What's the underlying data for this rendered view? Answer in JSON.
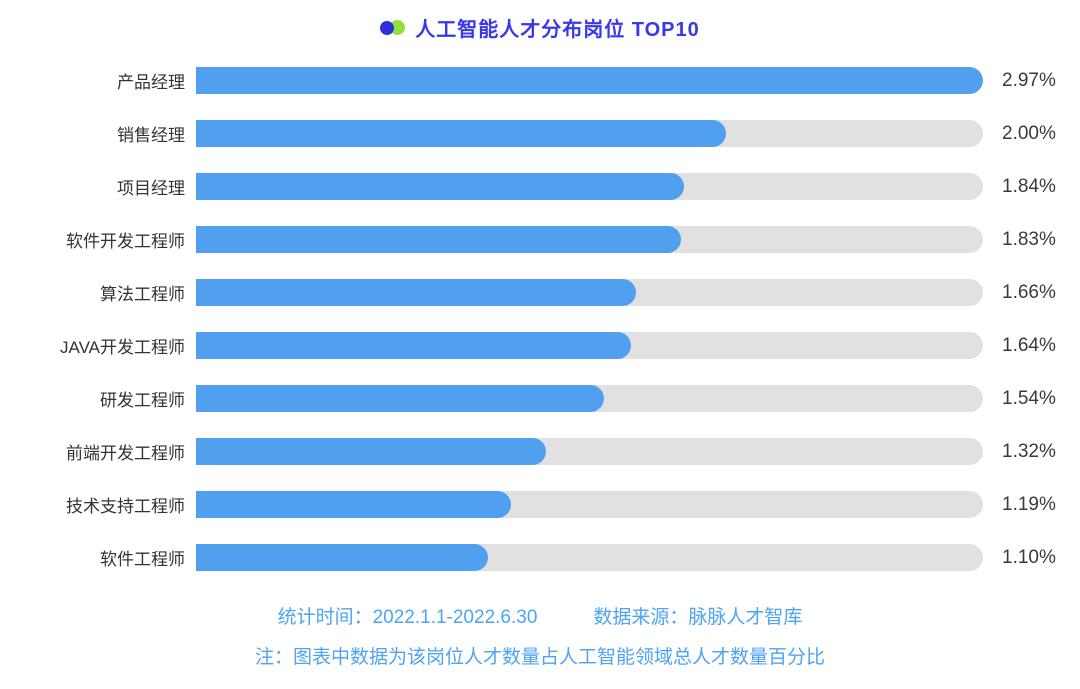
{
  "title": {
    "text": "人工智能人才分布岗位 TOP10",
    "icon": "overlapping-dots-icon"
  },
  "chart_data": {
    "type": "bar",
    "orientation": "horizontal",
    "title": "人工智能人才分布岗位 TOP10",
    "categories": [
      "产品经理",
      "销售经理",
      "项目经理",
      "软件开发工程师",
      "算法工程师",
      "JAVA开发工程师",
      "研发工程师",
      "前端开发工程师",
      "技术支持工程师",
      "软件工程师"
    ],
    "values": [
      2.97,
      2.0,
      1.84,
      1.83,
      1.66,
      1.64,
      1.54,
      1.32,
      1.19,
      1.1
    ],
    "value_labels": [
      "2.97%",
      "2.00%",
      "1.84%",
      "1.83%",
      "1.66%",
      "1.64%",
      "1.54%",
      "1.32%",
      "1.19%",
      "1.10%"
    ],
    "xlabel": "",
    "ylabel": "",
    "xlim": [
      0,
      2.97
    ],
    "grid": false,
    "legend": false,
    "value_label_position": "right"
  },
  "footer": {
    "stat_time": "统计时间：2022.1.1-2022.6.30",
    "source": "数据来源：脉脉人才智库",
    "note": "注：图表中数据为该岗位人才数量占人工智能领域总人才数量百分比"
  },
  "colors": {
    "bar-blue": "#519FEF",
    "track-gray": "#E1E1E1",
    "title-blue": "#3937EA",
    "footer-blue": "#4FA3F5",
    "text-dark": "#3A3A3A",
    "dot-blue": "#2E2EDC",
    "dot-green": "#92E13A"
  }
}
